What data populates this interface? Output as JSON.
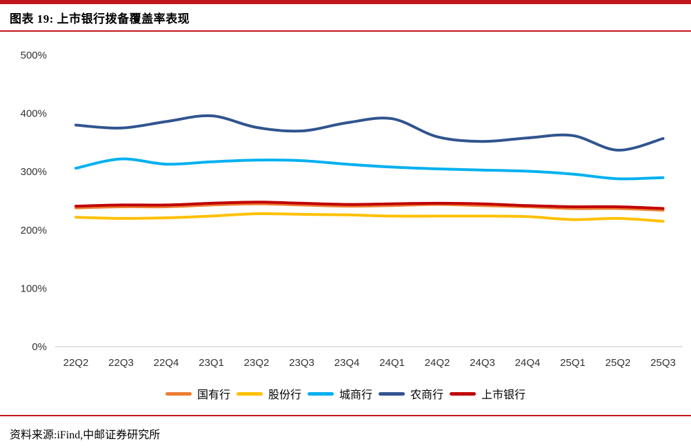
{
  "header": {
    "title": "图表 19: 上市银行拨备覆盖率表现"
  },
  "footer": {
    "source": "资料来源:iFind,中邮证券研究所"
  },
  "colors": {
    "accent_red_bar": "#c0171c",
    "axis_line": "#d9d9d9",
    "tick_text": "#333333"
  },
  "chart_data": {
    "type": "line",
    "title": "上市银行拨备覆盖率表现",
    "categories": [
      "22Q2",
      "22Q3",
      "22Q4",
      "23Q1",
      "23Q2",
      "23Q3",
      "23Q4",
      "24Q1",
      "24Q2",
      "24Q3",
      "24Q4",
      "25Q1",
      "25Q2",
      "25Q3"
    ],
    "series": [
      {
        "name": "国有行",
        "color": "#ED7D31",
        "values": [
          238,
          240,
          240,
          243,
          245,
          243,
          241,
          242,
          244,
          242,
          240,
          237,
          237,
          234
        ]
      },
      {
        "name": "股份行",
        "color": "#FFC000",
        "values": [
          222,
          220,
          221,
          224,
          228,
          227,
          226,
          224,
          224,
          224,
          223,
          218,
          220,
          215
        ]
      },
      {
        "name": "城商行",
        "color": "#00B0F0",
        "values": [
          306,
          322,
          313,
          317,
          320,
          319,
          313,
          308,
          305,
          303,
          301,
          296,
          288,
          290
        ]
      },
      {
        "name": "农商行",
        "color": "#30548F",
        "values": [
          380,
          375,
          386,
          396,
          376,
          370,
          384,
          391,
          360,
          352,
          358,
          362,
          337,
          357
        ]
      },
      {
        "name": "上市银行",
        "color": "#C00000",
        "values": [
          241,
          243,
          243,
          246,
          248,
          246,
          244,
          245,
          246,
          245,
          242,
          240,
          240,
          237
        ]
      }
    ],
    "yticks": [
      "0%",
      "100%",
      "200%",
      "300%",
      "400%",
      "500%"
    ],
    "ytick_step": 100,
    "ylim": [
      0,
      500
    ],
    "xlabel": "",
    "ylabel": "",
    "grid": false,
    "smooth": true,
    "legend_position": "bottom"
  }
}
